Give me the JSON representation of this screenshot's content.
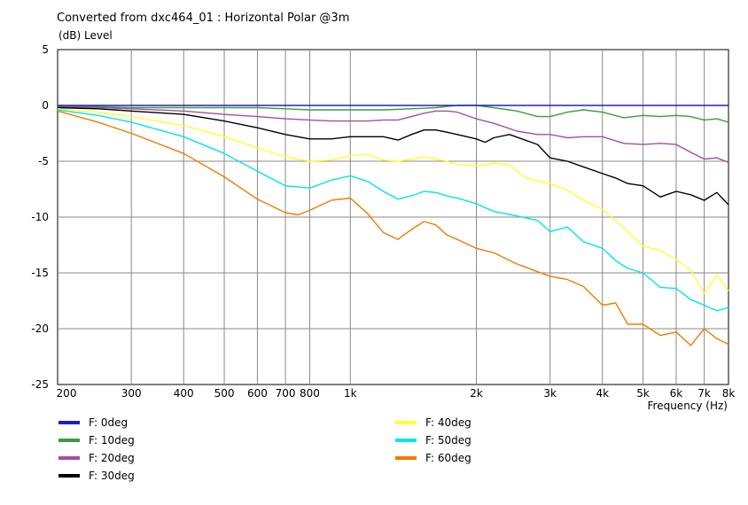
{
  "chart_data": {
    "type": "line",
    "title": "Converted from dxc464_01 : Horizontal Polar @3m",
    "ylabel": "(dB)  Level",
    "xlabel": "Frequency  (Hz)",
    "x_scale": "log",
    "xlim": [
      200,
      8000
    ],
    "ylim": [
      -25,
      5
    ],
    "grid": true,
    "legend_position": "bottom",
    "x_ticks": [
      {
        "value": 200,
        "label": "200"
      },
      {
        "value": 300,
        "label": "300"
      },
      {
        "value": 400,
        "label": "400"
      },
      {
        "value": 500,
        "label": "500"
      },
      {
        "value": 600,
        "label": "600"
      },
      {
        "value": 700,
        "label": "700"
      },
      {
        "value": 800,
        "label": "800"
      },
      {
        "value": 1000,
        "label": "1k"
      },
      {
        "value": 2000,
        "label": "2k"
      },
      {
        "value": 3000,
        "label": "3k"
      },
      {
        "value": 4000,
        "label": "4k"
      },
      {
        "value": 5000,
        "label": "5k"
      },
      {
        "value": 6000,
        "label": "6k"
      },
      {
        "value": 7000,
        "label": "7k"
      },
      {
        "value": 8000,
        "label": "8k"
      }
    ],
    "y_ticks": [
      {
        "value": 5,
        "label": "5"
      },
      {
        "value": 0,
        "label": "0"
      },
      {
        "value": -5,
        "label": "-5"
      },
      {
        "value": -10,
        "label": "-10"
      },
      {
        "value": -15,
        "label": "-15"
      },
      {
        "value": -20,
        "label": "-20"
      },
      {
        "value": -25,
        "label": "-25"
      }
    ],
    "series": [
      {
        "name": "F: 0deg",
        "color": "#2020c0",
        "x": [
          200,
          8000
        ],
        "y": [
          0,
          0
        ]
      },
      {
        "name": "F: 10deg",
        "color": "#3c9c3c",
        "x": [
          200,
          250,
          300,
          400,
          500,
          600,
          700,
          800,
          900,
          1000,
          1200,
          1400,
          1600,
          1800,
          2000,
          2200,
          2500,
          2800,
          3000,
          3300,
          3600,
          4000,
          4500,
          5000,
          5500,
          6000,
          6500,
          7000,
          7500,
          8000
        ],
        "y": [
          -0.1,
          -0.1,
          -0.2,
          -0.2,
          -0.2,
          -0.2,
          -0.3,
          -0.4,
          -0.4,
          -0.4,
          -0.4,
          -0.3,
          -0.2,
          0.0,
          0.0,
          -0.2,
          -0.5,
          -1.0,
          -1.0,
          -0.6,
          -0.4,
          -0.6,
          -1.1,
          -0.9,
          -1.0,
          -0.9,
          -1.0,
          -1.3,
          -1.2,
          -1.5
        ]
      },
      {
        "name": "F: 20deg",
        "color": "#a050a0",
        "x": [
          200,
          250,
          300,
          400,
          500,
          600,
          700,
          800,
          900,
          1000,
          1100,
          1200,
          1300,
          1400,
          1500,
          1600,
          1700,
          1800,
          2000,
          2200,
          2500,
          2800,
          3000,
          3300,
          3600,
          4000,
          4500,
          5000,
          5500,
          6000,
          6500,
          7000,
          7500,
          8000
        ],
        "y": [
          -0.1,
          -0.2,
          -0.3,
          -0.5,
          -0.8,
          -1.0,
          -1.2,
          -1.3,
          -1.4,
          -1.4,
          -1.4,
          -1.3,
          -1.3,
          -1.0,
          -0.7,
          -0.5,
          -0.5,
          -0.6,
          -1.2,
          -1.6,
          -2.3,
          -2.6,
          -2.6,
          -2.9,
          -2.8,
          -2.8,
          -3.4,
          -3.5,
          -3.4,
          -3.5,
          -4.2,
          -4.8,
          -4.7,
          -5.1
        ]
      },
      {
        "name": "F: 30deg",
        "color": "#000000",
        "x": [
          200,
          250,
          300,
          400,
          500,
          600,
          700,
          800,
          900,
          1000,
          1100,
          1200,
          1300,
          1400,
          1500,
          1600,
          1700,
          1800,
          2000,
          2100,
          2200,
          2400,
          2800,
          3000,
          3300,
          3600,
          4000,
          4300,
          4600,
          5000,
          5500,
          6000,
          6500,
          7000,
          7500,
          8000
        ],
        "y": [
          -0.2,
          -0.3,
          -0.5,
          -0.8,
          -1.4,
          -2.0,
          -2.6,
          -3.0,
          -3.0,
          -2.8,
          -2.8,
          -2.8,
          -3.1,
          -2.6,
          -2.2,
          -2.2,
          -2.4,
          -2.6,
          -3.0,
          -3.3,
          -2.9,
          -2.6,
          -3.5,
          -4.7,
          -5.0,
          -5.5,
          -6.1,
          -6.5,
          -7.0,
          -7.2,
          -8.2,
          -7.7,
          -8.0,
          -8.5,
          -7.8,
          -8.9
        ]
      },
      {
        "name": "F: 40deg",
        "color": "#ffff33",
        "x": [
          200,
          250,
          300,
          400,
          500,
          600,
          700,
          800,
          900,
          1000,
          1100,
          1200,
          1300,
          1400,
          1500,
          1600,
          1700,
          1800,
          2000,
          2200,
          2400,
          2600,
          2800,
          3000,
          3300,
          3600,
          4000,
          4300,
          4600,
          5000,
          5500,
          6000,
          6500,
          7000,
          7500,
          8000
        ],
        "y": [
          -0.3,
          -0.6,
          -1.0,
          -1.8,
          -2.8,
          -3.8,
          -4.6,
          -5.0,
          -4.9,
          -4.5,
          -4.4,
          -4.9,
          -5.0,
          -4.8,
          -4.6,
          -4.8,
          -5.0,
          -5.3,
          -5.4,
          -5.2,
          -5.3,
          -6.4,
          -6.8,
          -7.0,
          -7.6,
          -8.5,
          -9.3,
          -10.3,
          -11.3,
          -12.6,
          -13.0,
          -13.8,
          -14.8,
          -16.8,
          -15.2,
          -16.6
        ]
      },
      {
        "name": "F: 50deg",
        "color": "#00e5ee",
        "x": [
          200,
          250,
          300,
          400,
          500,
          600,
          700,
          800,
          900,
          1000,
          1100,
          1200,
          1300,
          1400,
          1500,
          1600,
          1700,
          1800,
          2000,
          2200,
          2500,
          2800,
          3000,
          3300,
          3600,
          4000,
          4300,
          4600,
          5000,
          5500,
          6000,
          6500,
          7000,
          7500,
          8000
        ],
        "y": [
          -0.4,
          -0.9,
          -1.5,
          -2.8,
          -4.3,
          -5.9,
          -7.2,
          -7.4,
          -6.7,
          -6.3,
          -6.8,
          -7.7,
          -8.4,
          -8.1,
          -7.7,
          -7.8,
          -8.1,
          -8.3,
          -8.8,
          -9.5,
          -9.9,
          -10.3,
          -11.3,
          -10.9,
          -12.2,
          -12.8,
          -13.9,
          -14.6,
          -15.0,
          -16.3,
          -16.4,
          -17.4,
          -17.9,
          -18.4,
          -18.1
        ]
      },
      {
        "name": "F: 60deg",
        "color": "#ee7c00",
        "x": [
          200,
          250,
          300,
          400,
          500,
          600,
          700,
          750,
          800,
          900,
          1000,
          1100,
          1200,
          1300,
          1400,
          1500,
          1600,
          1700,
          1800,
          2000,
          2200,
          2500,
          2800,
          3000,
          3300,
          3600,
          4000,
          4300,
          4600,
          5000,
          5500,
          6000,
          6500,
          7000,
          7500,
          8000
        ],
        "y": [
          -0.5,
          -1.5,
          -2.5,
          -4.3,
          -6.4,
          -8.4,
          -9.6,
          -9.8,
          -9.4,
          -8.5,
          -8.3,
          -9.7,
          -11.4,
          -12.0,
          -11.1,
          -10.4,
          -10.7,
          -11.6,
          -12.0,
          -12.8,
          -13.2,
          -14.2,
          -14.9,
          -15.3,
          -15.6,
          -16.2,
          -17.9,
          -17.7,
          -19.6,
          -19.6,
          -20.6,
          -20.3,
          -21.5,
          -20.0,
          -20.9,
          -21.4
        ]
      }
    ]
  }
}
